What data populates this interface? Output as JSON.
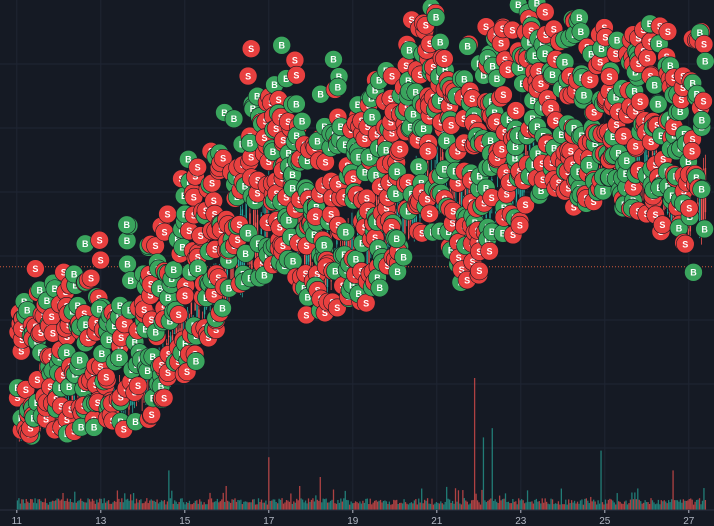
{
  "chart_data": {
    "type": "trading-chart",
    "x_axis": {
      "unit": "day",
      "tick_labels": [
        "11",
        "13",
        "15",
        "17",
        "19",
        "21",
        "23",
        "25",
        "27"
      ],
      "tick_values": [
        11,
        13,
        15,
        17,
        19,
        21,
        23,
        25,
        27
      ],
      "range": [
        10.6,
        27.6
      ]
    },
    "price_axis": {
      "range": [
        0,
        100
      ],
      "reference_level": 43
    },
    "price_trend": {
      "x": [
        11.0,
        11.5,
        12.0,
        12.5,
        13.0,
        13.5,
        14.0,
        14.5,
        15.0,
        15.5,
        16.0,
        16.5,
        17.0,
        17.5,
        18.0,
        18.5,
        19.0,
        19.5,
        20.0,
        20.5,
        21.0,
        21.5,
        22.0,
        22.5,
        23.0,
        23.5,
        24.0,
        24.5,
        25.0,
        25.5,
        26.0,
        26.5,
        27.0,
        27.4
      ],
      "low": [
        7,
        8,
        10,
        11,
        11,
        12,
        13,
        18,
        24,
        29,
        35,
        40,
        45,
        48,
        34,
        38,
        36,
        41,
        45,
        50,
        55,
        43,
        45,
        50,
        55,
        62,
        60,
        59,
        60,
        58,
        58,
        52,
        44,
        50
      ],
      "high": [
        9,
        10,
        15,
        17,
        18,
        18,
        20,
        28,
        35,
        42,
        50,
        58,
        62,
        60,
        50,
        55,
        52,
        58,
        62,
        66,
        70,
        62,
        60,
        64,
        70,
        76,
        70,
        68,
        70,
        69,
        70,
        66,
        60,
        66
      ]
    },
    "volume": {
      "scale_max": 100,
      "baseline": 4,
      "spikes": [
        {
          "x": 21.9,
          "value": 100
        },
        {
          "x": 22.1,
          "value": 55
        },
        {
          "x": 22.3,
          "value": 62
        },
        {
          "x": 17.0,
          "value": 40
        },
        {
          "x": 14.6,
          "value": 30
        },
        {
          "x": 24.9,
          "value": 45
        },
        {
          "x": 26.6,
          "value": 30
        },
        {
          "x": 18.2,
          "value": 25
        }
      ]
    },
    "trade_markers": {
      "buy_label": "B",
      "sell_label": "S",
      "buy_color": "#3aa55d",
      "sell_color": "#e8403f",
      "min_marker_band": 6
    },
    "colors": {
      "background": "#151a24",
      "grid": "#1f2533",
      "candle_up": "#26a69a",
      "candle_down": "#ef5350",
      "reference_line": "#d25a3c",
      "axis_text": "#b3b8c4"
    }
  }
}
